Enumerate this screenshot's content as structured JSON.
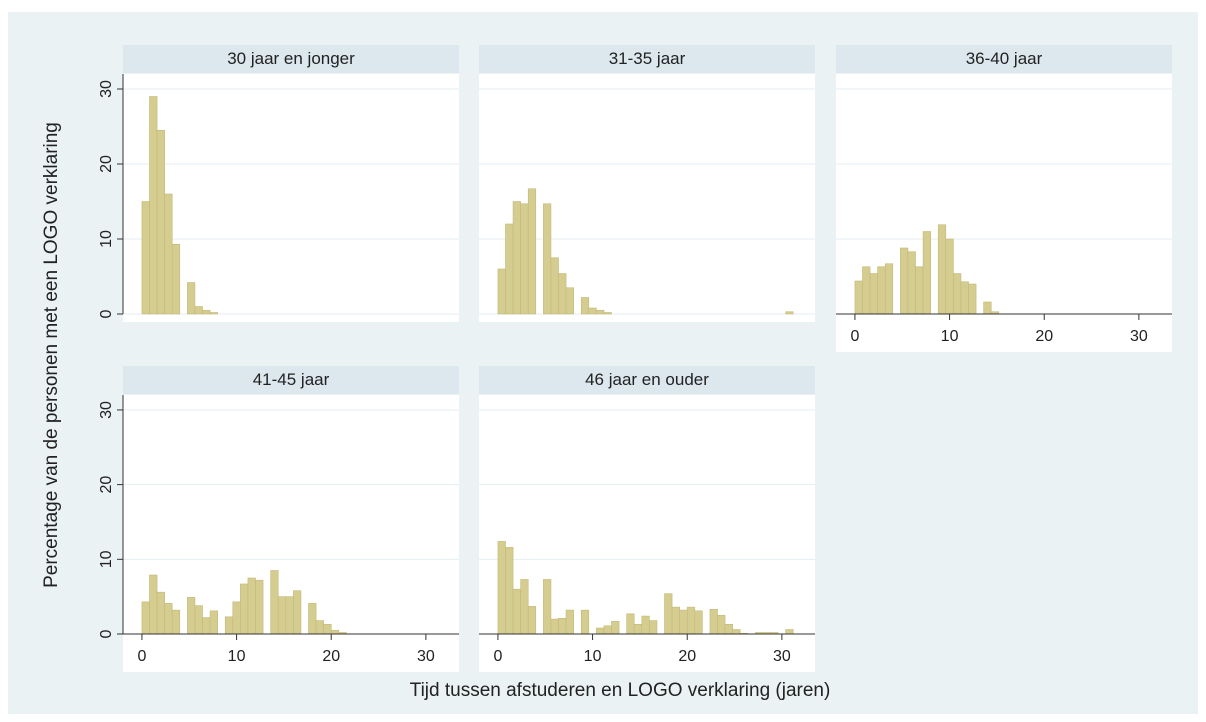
{
  "chart_data": {
    "type": "histogram",
    "y_label": "Percentage van de personen met een LOGO verklaring",
    "x_label": "Tijd tussen afstuderen en LOGO verklaring (jaren)",
    "color": "#d5cd8f",
    "bins": [
      0,
      0.8,
      1.6,
      2.4,
      3.2,
      4,
      4.8,
      5.6,
      6.4,
      7.2,
      8,
      8.8,
      9.6,
      10.4,
      11.2,
      12,
      12.8,
      13.6,
      14.4,
      15.2,
      16,
      16.8,
      17.6,
      18.4,
      19.2,
      20,
      20.8,
      21.6,
      22.4,
      23.2,
      24,
      24.8,
      25.6,
      26.4,
      27.2,
      28,
      28.8,
      29.6,
      30.4,
      31.2,
      32
    ],
    "xlim": [
      -2,
      33.5
    ],
    "xticks": [
      0,
      10,
      20,
      30
    ],
    "ylim": [
      0,
      32
    ],
    "yticks": [
      0,
      10,
      20,
      30
    ],
    "grid": true,
    "series": [
      {
        "name": "30 jaar en jonger",
        "values": [
          15,
          29,
          24.5,
          16,
          9.3,
          0,
          4.2,
          1,
          0.5,
          0.2,
          0,
          0,
          0,
          0,
          0,
          0,
          0,
          0,
          0,
          0,
          0,
          0,
          0,
          0,
          0,
          0,
          0,
          0,
          0,
          0,
          0,
          0,
          0,
          0,
          0,
          0,
          0,
          0,
          0,
          0
        ]
      },
      {
        "name": "31-35 jaar",
        "values": [
          6,
          12,
          15,
          14.7,
          16.7,
          0,
          14.7,
          7.5,
          5.4,
          3.5,
          0,
          2.2,
          0.8,
          0.5,
          0.2,
          0,
          0,
          0,
          0,
          0,
          0,
          0,
          0,
          0,
          0,
          0,
          0,
          0,
          0,
          0,
          0,
          0,
          0,
          0,
          0,
          0,
          0,
          0,
          0.3,
          0
        ]
      },
      {
        "name": "36-40 jaar",
        "values": [
          4.4,
          6.3,
          5.4,
          6.3,
          6.7,
          0,
          8.8,
          8.3,
          6.3,
          11,
          0,
          11.9,
          10,
          5.4,
          4.3,
          4,
          0,
          1.6,
          0.3,
          0,
          0,
          0,
          0,
          0,
          0,
          0,
          0,
          0,
          0,
          0,
          0,
          0,
          0,
          0,
          0,
          0,
          0,
          0,
          0,
          0
        ]
      },
      {
        "name": "41-45 jaar",
        "values": [
          4.3,
          7.9,
          5.6,
          4.1,
          3.2,
          0,
          4.9,
          3.8,
          2.2,
          3.1,
          0,
          2.3,
          4.3,
          6.7,
          7.5,
          7.2,
          0,
          8.5,
          5,
          5,
          5.8,
          0,
          4.1,
          1.8,
          1.3,
          0.5,
          0.2,
          0,
          0,
          0,
          0,
          0,
          0,
          0,
          0,
          0,
          0,
          0,
          0,
          0
        ]
      },
      {
        "name": "46 jaar en ouder",
        "values": [
          12.4,
          11.6,
          6,
          7.3,
          3.7,
          0,
          7.3,
          2,
          2.1,
          3.2,
          0,
          3.2,
          0,
          0.8,
          1.1,
          1.7,
          0,
          2.7,
          1.3,
          2.4,
          1.8,
          0,
          5.4,
          3.6,
          3.2,
          3.6,
          3.1,
          0,
          3.3,
          2.5,
          1.3,
          0.6,
          0.1,
          0,
          0.2,
          0.2,
          0.2,
          0,
          0.6,
          0
        ]
      }
    ]
  }
}
